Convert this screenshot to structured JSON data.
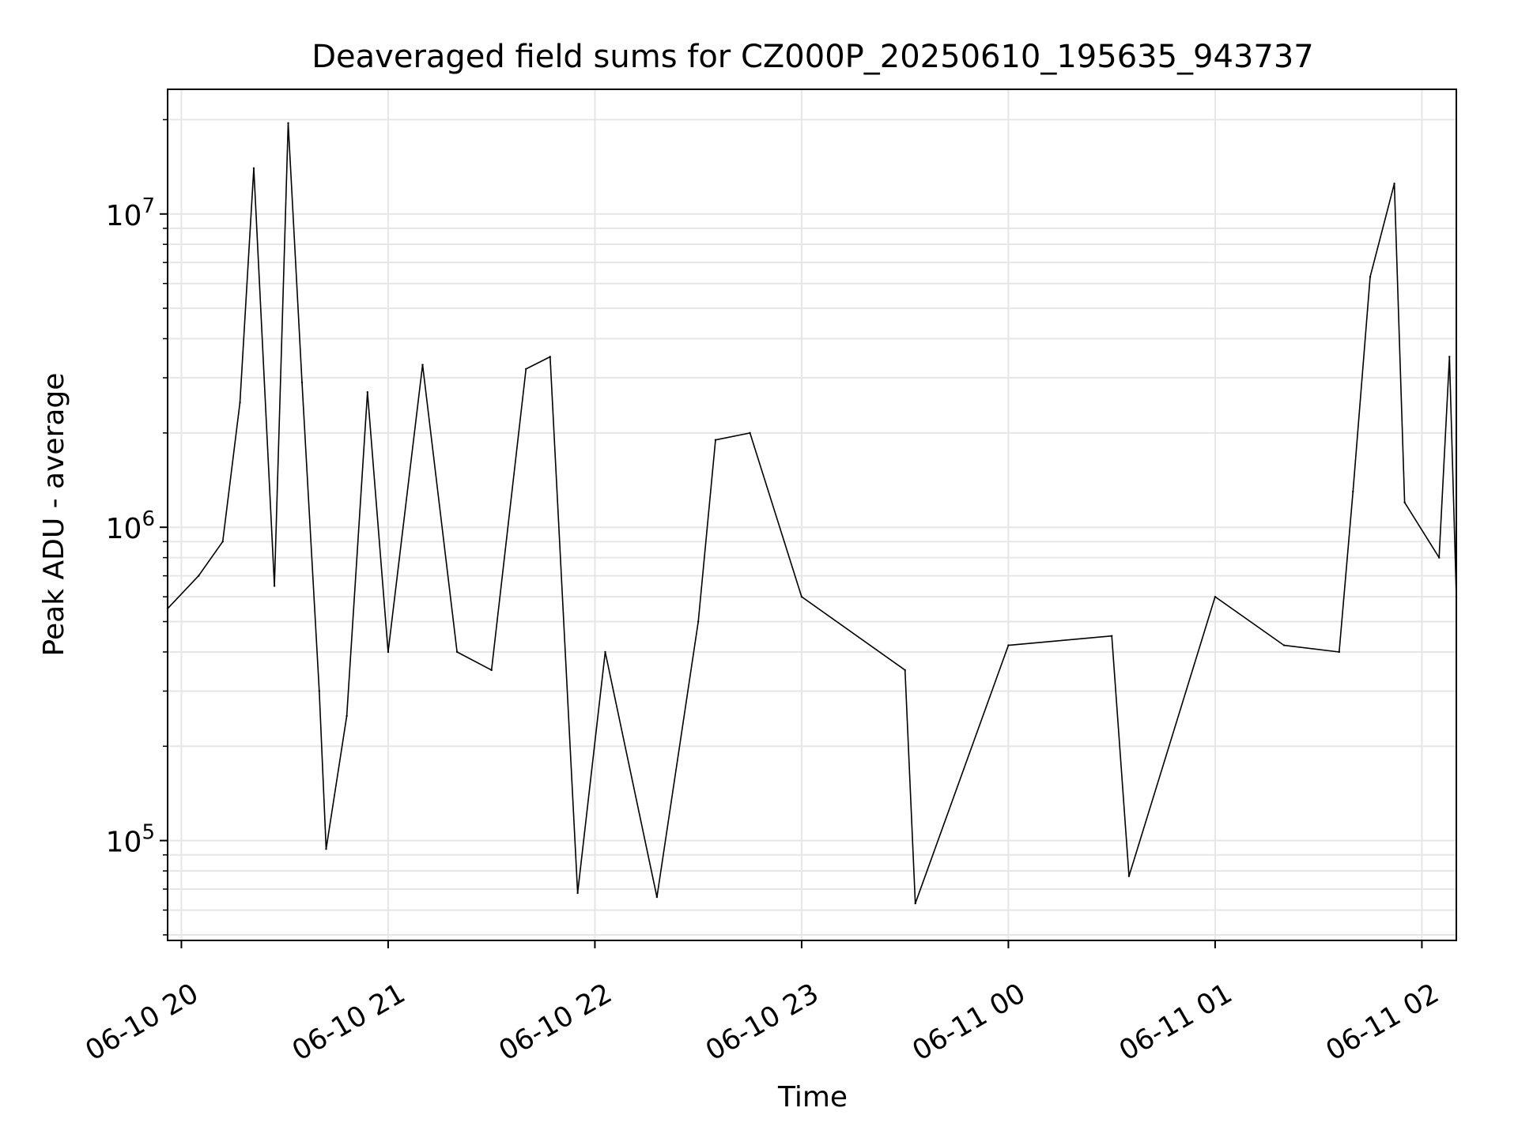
{
  "chart_data": {
    "type": "line",
    "title": "Deaveraged field sums for CZ000P_20250610_195635_943737",
    "xlabel": "Time",
    "ylabel": "Peak ADU - average",
    "y_scale": "log",
    "ylim": [
      48000,
      25000000
    ],
    "xlim": [
      "2025-06-10 19:56",
      "2025-06-11 02:10"
    ],
    "grid": true,
    "grid_minor": true,
    "line_color": "#000000",
    "grid_color": "#e6e6e6",
    "x_ticks": [
      {
        "t": "2025-06-10 20:00",
        "label": "06-10 20"
      },
      {
        "t": "2025-06-10 21:00",
        "label": "06-10 21"
      },
      {
        "t": "2025-06-10 22:00",
        "label": "06-10 22"
      },
      {
        "t": "2025-06-10 23:00",
        "label": "06-10 23"
      },
      {
        "t": "2025-06-11 00:00",
        "label": "06-11 00"
      },
      {
        "t": "2025-06-11 01:00",
        "label": "06-11 01"
      },
      {
        "t": "2025-06-11 02:00",
        "label": "06-11 02"
      }
    ],
    "y_ticks": [
      {
        "value": 100000,
        "base": "10",
        "exp": "5"
      },
      {
        "value": 1000000,
        "base": "10",
        "exp": "6"
      },
      {
        "value": 10000000,
        "base": "10",
        "exp": "7"
      }
    ],
    "series": [
      {
        "values": [
          {
            "t": "2025-06-10 19:56",
            "y": 550000
          },
          {
            "t": "2025-06-10 20:05",
            "y": 700000
          },
          {
            "t": "2025-06-10 20:12",
            "y": 900000
          },
          {
            "t": "2025-06-10 20:17",
            "y": 2500000
          },
          {
            "t": "2025-06-10 20:21",
            "y": 14000000
          },
          {
            "t": "2025-06-10 20:27",
            "y": 650000
          },
          {
            "t": "2025-06-10 20:31",
            "y": 19500000
          },
          {
            "t": "2025-06-10 20:35",
            "y": 2900000
          },
          {
            "t": "2025-06-10 20:40",
            "y": 300000
          },
          {
            "t": "2025-06-10 20:42",
            "y": 94000
          },
          {
            "t": "2025-06-10 20:48",
            "y": 250000
          },
          {
            "t": "2025-06-10 20:54",
            "y": 2700000
          },
          {
            "t": "2025-06-10 21:00",
            "y": 400000
          },
          {
            "t": "2025-06-10 21:10",
            "y": 3300000
          },
          {
            "t": "2025-06-10 21:20",
            "y": 400000
          },
          {
            "t": "2025-06-10 21:30",
            "y": 350000
          },
          {
            "t": "2025-06-10 21:40",
            "y": 3200000
          },
          {
            "t": "2025-06-10 21:47",
            "y": 3500000
          },
          {
            "t": "2025-06-10 21:55",
            "y": 68000
          },
          {
            "t": "2025-06-10 22:03",
            "y": 400000
          },
          {
            "t": "2025-06-10 22:18",
            "y": 66000
          },
          {
            "t": "2025-06-10 22:30",
            "y": 500000
          },
          {
            "t": "2025-06-10 22:35",
            "y": 1900000
          },
          {
            "t": "2025-06-10 22:45",
            "y": 2000000
          },
          {
            "t": "2025-06-10 23:00",
            "y": 600000
          },
          {
            "t": "2025-06-10 23:30",
            "y": 350000
          },
          {
            "t": "2025-06-10 23:33",
            "y": 63000
          },
          {
            "t": "2025-06-11 00:00",
            "y": 420000
          },
          {
            "t": "2025-06-11 00:30",
            "y": 450000
          },
          {
            "t": "2025-06-11 00:35",
            "y": 77000
          },
          {
            "t": "2025-06-11 01:00",
            "y": 600000
          },
          {
            "t": "2025-06-11 01:20",
            "y": 420000
          },
          {
            "t": "2025-06-11 01:36",
            "y": 400000
          },
          {
            "t": "2025-06-11 01:40",
            "y": 1300000
          },
          {
            "t": "2025-06-11 01:45",
            "y": 6300000
          },
          {
            "t": "2025-06-11 01:52",
            "y": 12500000
          },
          {
            "t": "2025-06-11 01:55",
            "y": 1200000
          },
          {
            "t": "2025-06-11 02:05",
            "y": 800000
          },
          {
            "t": "2025-06-11 02:08",
            "y": 3500000
          },
          {
            "t": "2025-06-11 02:10",
            "y": 600000
          }
        ]
      }
    ]
  }
}
